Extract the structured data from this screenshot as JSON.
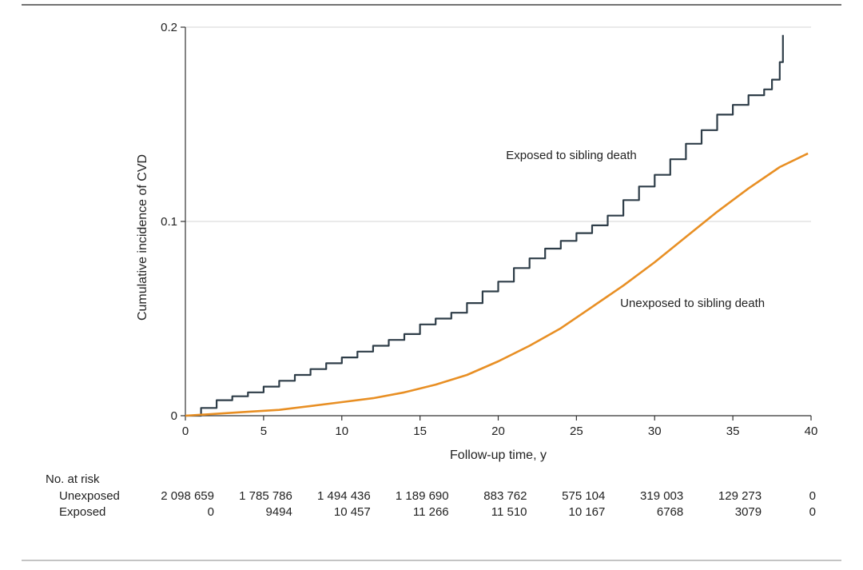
{
  "chart_data": {
    "type": "line",
    "xlabel": "Follow-up time, y",
    "ylabel": "Cumulative incidence of CVD",
    "xlim": [
      0,
      40
    ],
    "ylim": [
      0,
      0.2
    ],
    "x_ticks": [
      0,
      5,
      10,
      15,
      20,
      25,
      30,
      35,
      40
    ],
    "x_tick_labels": [
      "0",
      "5",
      "10",
      "15",
      "20",
      "25",
      "30",
      "35",
      "40"
    ],
    "y_ticks": [
      0,
      0.1,
      0.2
    ],
    "y_tick_labels": [
      "0",
      "0.1",
      "0.2"
    ],
    "grid": "horizontal",
    "series": [
      {
        "name": "Exposed to sibling death",
        "color": "#2e3d48",
        "step": true,
        "points": [
          [
            0,
            0
          ],
          [
            1,
            0.004
          ],
          [
            2,
            0.008
          ],
          [
            3,
            0.01
          ],
          [
            4,
            0.012
          ],
          [
            5,
            0.015
          ],
          [
            6,
            0.018
          ],
          [
            7,
            0.021
          ],
          [
            8,
            0.024
          ],
          [
            9,
            0.027
          ],
          [
            10,
            0.03
          ],
          [
            11,
            0.033
          ],
          [
            12,
            0.036
          ],
          [
            13,
            0.039
          ],
          [
            14,
            0.042
          ],
          [
            15,
            0.047
          ],
          [
            16,
            0.05
          ],
          [
            17,
            0.053
          ],
          [
            18,
            0.058
          ],
          [
            19,
            0.064
          ],
          [
            20,
            0.069
          ],
          [
            21,
            0.076
          ],
          [
            22,
            0.081
          ],
          [
            23,
            0.086
          ],
          [
            24,
            0.09
          ],
          [
            25,
            0.094
          ],
          [
            26,
            0.098
          ],
          [
            27,
            0.103
          ],
          [
            28,
            0.111
          ],
          [
            29,
            0.118
          ],
          [
            30,
            0.124
          ],
          [
            31,
            0.132
          ],
          [
            32,
            0.14
          ],
          [
            33,
            0.147
          ],
          [
            34,
            0.155
          ],
          [
            35,
            0.16
          ],
          [
            36,
            0.165
          ],
          [
            37,
            0.168
          ],
          [
            37.5,
            0.173
          ],
          [
            38,
            0.182
          ],
          [
            38.2,
            0.196
          ]
        ]
      },
      {
        "name": "Unexposed to sibling death",
        "color": "#e88f24",
        "step": false,
        "points": [
          [
            0,
            0
          ],
          [
            2,
            0.001
          ],
          [
            4,
            0.002
          ],
          [
            6,
            0.003
          ],
          [
            8,
            0.005
          ],
          [
            10,
            0.007
          ],
          [
            12,
            0.009
          ],
          [
            14,
            0.012
          ],
          [
            16,
            0.016
          ],
          [
            18,
            0.021
          ],
          [
            20,
            0.028
          ],
          [
            22,
            0.036
          ],
          [
            24,
            0.045
          ],
          [
            26,
            0.056
          ],
          [
            28,
            0.067
          ],
          [
            30,
            0.079
          ],
          [
            32,
            0.092
          ],
          [
            34,
            0.105
          ],
          [
            36,
            0.117
          ],
          [
            38,
            0.128
          ],
          [
            39.8,
            0.135
          ]
        ]
      }
    ],
    "annotations": [
      {
        "text": "Exposed to sibling death",
        "x": 20.5,
        "y": 0.132
      },
      {
        "text": "Unexposed to sibling death",
        "x": 27.8,
        "y": 0.056
      }
    ],
    "at_risk": {
      "heading": "No. at risk",
      "rows": [
        {
          "label": "Unexposed",
          "values": [
            "2 098 659",
            "1 785 786",
            "1 494 436",
            "1 189 690",
            "883 762",
            "575 104",
            "319 003",
            "129 273",
            "0"
          ]
        },
        {
          "label": "Exposed",
          "values": [
            "0",
            "9494",
            "10 457",
            "11 266",
            "11 510",
            "10 167",
            "6768",
            "3079",
            "0"
          ]
        }
      ]
    }
  }
}
